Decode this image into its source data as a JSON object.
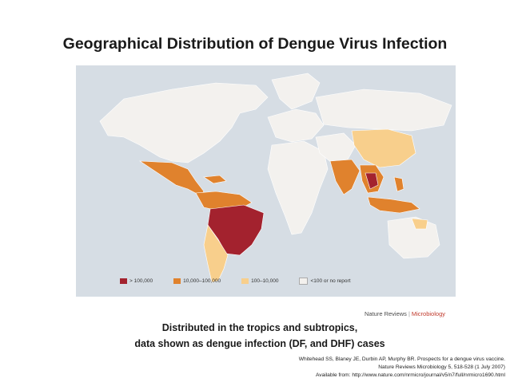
{
  "slide": {
    "title": "Geographical Distribution of Dengue Virus Infection",
    "caption_line1": "Distributed in the tropics and subtropics,",
    "caption_line2": "data shown as dengue infection (DF, and DHF) cases"
  },
  "map": {
    "brand_left": "Nature Reviews",
    "brand_separator": "|",
    "brand_right": "Microbiology",
    "colors": {
      "ocean": "#d6dde4",
      "land_no_report": "#f3f1ee",
      "range_100_10000": "#f8cf8c",
      "range_10000_100000": "#e0822d",
      "range_over_100000": "#a3222e"
    },
    "legend": [
      {
        "label": "> 100,000",
        "color": "#a3222e"
      },
      {
        "label": "10,000–100,000",
        "color": "#e0822d"
      },
      {
        "label": "100–10,000",
        "color": "#f8cf8c"
      },
      {
        "label": "<100 or no report",
        "color": "#f3f1ee"
      }
    ]
  },
  "citation": {
    "line1": "Whitehead SS, Blaney JE, Durbin AP, Murphy BR. Prospects for a dengue virus vaccine.",
    "line2": "Nature Reviews Microbiology 5, 518-528 (1 July 2007)",
    "line3": "Available from: http://www.nature.com/nrmicro/journal/v5/n7/full/nrmicro1690.html"
  }
}
